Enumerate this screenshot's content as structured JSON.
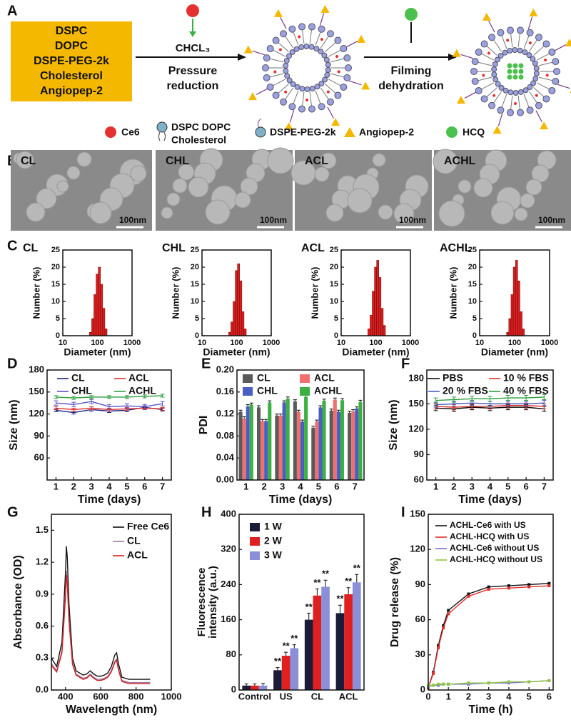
{
  "diagram": {
    "panel": "A",
    "box": [
      "DSPC",
      "DOPC",
      "DSPE-PEG-2k",
      "Cholesterol",
      "Angiopep-2"
    ],
    "step1": {
      "reagent": "CHCL₃",
      "label": [
        "Pressure",
        "reduction"
      ]
    },
    "step2": {
      "label": [
        "Filming",
        "dehydration"
      ]
    },
    "legend": {
      "ce6": "Ce6",
      "lipids": [
        "DSPC DOPC",
        "Cholesterol"
      ],
      "peg": "DSPE-PEG-2k",
      "angiopep": "Angiopep-2",
      "hcq": "HCQ"
    }
  },
  "tem": {
    "panel": "B",
    "images": [
      {
        "label": "CL",
        "scale": "100nm"
      },
      {
        "label": "CHL",
        "scale": "100nm"
      },
      {
        "label": "ACL",
        "scale": "100nm"
      },
      {
        "label": "ACHL",
        "scale": "100nm"
      }
    ]
  },
  "chart_data": [
    {
      "type": "histogram",
      "panel": "C",
      "title": "CL",
      "xlabel": "Diameter (nm)",
      "ylabel": "Number (%)",
      "log_x": true,
      "color": "#d42020",
      "bins": [
        58.8,
        68.1,
        78.8,
        91.3,
        105.7,
        122.4,
        141.8,
        164.2,
        190.1
      ],
      "counts": [
        1,
        5,
        12,
        18,
        20,
        15,
        8,
        2
      ],
      "xlim": [
        10,
        1000
      ],
      "xticks": [
        10,
        100,
        1000
      ],
      "ylim": [
        0,
        25
      ],
      "yticks": [
        0,
        5,
        10,
        15,
        20,
        25
      ]
    },
    {
      "type": "histogram",
      "title": "CHL",
      "xlabel": "Diameter (nm)",
      "ylabel": "Number (%)",
      "log_x": true,
      "color": "#d42020",
      "bins": [
        58.8,
        68.1,
        78.8,
        91.3,
        105.7,
        122.4,
        141.8,
        164.2,
        190.1
      ],
      "counts": [
        1,
        4,
        10,
        19,
        21,
        16,
        7,
        2
      ],
      "xlim": [
        10,
        1000
      ],
      "xticks": [
        10,
        100,
        1000
      ],
      "ylim": [
        0,
        25
      ],
      "yticks": [
        0,
        5,
        10,
        15,
        20,
        25
      ]
    },
    {
      "type": "histogram",
      "title": "ACL",
      "xlabel": "Diameter (nm)",
      "ylabel": "Number (%)",
      "log_x": true,
      "color": "#d42020",
      "bins": [
        58.8,
        68.1,
        78.8,
        91.3,
        105.7,
        122.4,
        141.8,
        164.2,
        190.1
      ],
      "counts": [
        2,
        6,
        13,
        20,
        22,
        17,
        8,
        3
      ],
      "xlim": [
        10,
        1000
      ],
      "xticks": [
        10,
        100,
        1000
      ],
      "ylim": [
        0,
        25
      ],
      "yticks": [
        0,
        5,
        10,
        15,
        20,
        25
      ]
    },
    {
      "type": "histogram",
      "title": "ACHL",
      "xlabel": "Diameter (nm)",
      "ylabel": "Number (%)",
      "log_x": true,
      "color": "#d42020",
      "bins": [
        58.8,
        68.1,
        78.8,
        91.3,
        105.7,
        122.4,
        141.8,
        164.2,
        190.1
      ],
      "counts": [
        1,
        5,
        12,
        20,
        22,
        16,
        7,
        2
      ],
      "xlim": [
        10,
        1000
      ],
      "xticks": [
        10,
        100,
        1000
      ],
      "ylim": [
        0,
        25
      ],
      "yticks": [
        0,
        5,
        10,
        15,
        20,
        25
      ]
    },
    {
      "type": "line",
      "panel": "D",
      "xlabel": "Time (days)",
      "ylabel": "Size (nm)",
      "x": [
        1,
        2,
        3,
        4,
        5,
        6,
        7
      ],
      "xlim": [
        0.5,
        7.5
      ],
      "xticks": [
        1,
        2,
        3,
        4,
        5,
        6,
        7
      ],
      "ylim": [
        30,
        180
      ],
      "yticks": [
        60,
        90,
        120,
        150,
        180
      ],
      "series": [
        {
          "name": "CL",
          "color": "#1a237e",
          "values": [
            125,
            122,
            126,
            124,
            125,
            129,
            126
          ],
          "errors": [
            2,
            2,
            2,
            2,
            2,
            2,
            2
          ]
        },
        {
          "name": "ACL",
          "color": "#e0302a",
          "values": [
            128,
            126,
            128,
            126,
            127,
            128,
            127
          ],
          "errors": [
            2,
            2,
            2,
            2,
            2,
            2,
            2
          ]
        },
        {
          "name": "CHL",
          "color": "#5a55c8",
          "values": [
            135,
            133,
            137,
            130,
            131,
            130,
            134
          ],
          "errors": [
            3,
            3,
            3,
            3,
            3,
            3,
            3
          ]
        },
        {
          "name": "ACHL",
          "color": "#2e9e3e",
          "values": [
            143,
            142,
            143,
            143,
            143,
            144,
            145
          ],
          "errors": [
            2,
            2,
            2,
            2,
            2,
            2,
            2
          ]
        }
      ]
    },
    {
      "type": "bar",
      "panel": "E",
      "xlabel": "Time (days)",
      "ylabel": "PDI",
      "categories": [
        "1",
        "2",
        "3",
        "4",
        "5",
        "6",
        "7"
      ],
      "ylim": [
        0,
        0.2
      ],
      "yticks": [
        {
          "value": 0,
          "label": "0.00"
        },
        {
          "value": 0.04,
          "label": "0.04"
        },
        {
          "value": 0.08,
          "label": "0.08"
        },
        {
          "value": 0.12,
          "label": "0.12"
        },
        {
          "value": 0.16,
          "label": "0.16"
        },
        {
          "value": 0.2,
          "label": "0.20"
        }
      ],
      "series": [
        {
          "name": "CL",
          "color": "#5a5a5a",
          "values": [
            0.124,
            0.132,
            0.117,
            0.143,
            0.095,
            0.126,
            0.122
          ],
          "errors": [
            0.003,
            0.003,
            0.003,
            0.003,
            0.003,
            0.003,
            0.003
          ]
        },
        {
          "name": "ACL",
          "color": "#f07070",
          "values": [
            0.112,
            0.107,
            0.117,
            0.124,
            0.106,
            0.146,
            0.125
          ],
          "errors": [
            0.003,
            0.003,
            0.003,
            0.003,
            0.003,
            0.003,
            0.003
          ]
        },
        {
          "name": "CHL",
          "color": "#4a5fc1",
          "values": [
            0.134,
            0.107,
            0.141,
            0.106,
            0.132,
            0.124,
            0.13
          ],
          "errors": [
            0.003,
            0.003,
            0.003,
            0.003,
            0.003,
            0.003,
            0.003
          ]
        },
        {
          "name": "ACHL",
          "color": "#3cb043",
          "values": [
            0.137,
            0.141,
            0.148,
            0.151,
            0.144,
            0.145,
            0.142
          ],
          "errors": [
            0.003,
            0.003,
            0.003,
            0.003,
            0.003,
            0.003,
            0.003
          ]
        }
      ]
    },
    {
      "type": "line",
      "panel": "F",
      "xlabel": "Time (days)",
      "ylabel": "Size (nm)",
      "x": [
        1,
        2,
        3,
        4,
        5,
        6,
        7
      ],
      "xlim": [
        0.5,
        7.5
      ],
      "xticks": [
        1,
        2,
        3,
        4,
        5,
        6,
        7
      ],
      "ylim": [
        60,
        190
      ],
      "yticks": [
        60,
        90,
        120,
        150,
        180
      ],
      "series": [
        {
          "name": "PBS",
          "color": "#111111",
          "values": [
            145,
            144,
            146,
            145,
            146,
            146,
            144
          ],
          "errors": [
            3,
            3,
            3,
            3,
            3,
            3,
            3
          ]
        },
        {
          "name": "10 % FBS",
          "color": "#e0302a",
          "values": [
            147,
            146,
            147,
            147,
            148,
            148,
            147
          ],
          "errors": [
            3,
            3,
            3,
            3,
            3,
            3,
            3
          ]
        },
        {
          "name": "20 % FBS",
          "color": "#4a5fc1",
          "values": [
            149,
            150,
            151,
            150,
            150,
            150,
            151
          ],
          "errors": [
            3,
            3,
            3,
            3,
            3,
            3,
            3
          ]
        },
        {
          "name": "40 % FBS",
          "color": "#2e9e3e",
          "values": [
            154,
            155,
            156,
            156,
            157,
            157,
            158
          ],
          "errors": [
            3,
            3,
            3,
            3,
            3,
            3,
            3
          ]
        }
      ]
    },
    {
      "type": "line",
      "panel": "G",
      "xlabel": "Wavelength (nm)",
      "ylabel": "Absorbance (OD)",
      "x": [
        320,
        350,
        380,
        400,
        405,
        410,
        420,
        440,
        460,
        500,
        520,
        540,
        560,
        580,
        600,
        620,
        640,
        660,
        680,
        690,
        700,
        720,
        760,
        800,
        880
      ],
      "xlim": [
        320,
        1000
      ],
      "xticks": [
        400,
        600,
        800,
        1000
      ],
      "ylim": [
        0,
        1.65
      ],
      "yticks": [
        {
          "value": 0,
          "label": "0.0"
        },
        0.3,
        0.6,
        0.9,
        1.2,
        1.5
      ],
      "series": [
        {
          "name": "Free Ce6",
          "color": "#111111",
          "values": [
            0.3,
            0.22,
            0.45,
            1.1,
            1.35,
            1.25,
            0.8,
            0.3,
            0.18,
            0.14,
            0.15,
            0.18,
            0.15,
            0.13,
            0.13,
            0.14,
            0.16,
            0.22,
            0.33,
            0.35,
            0.25,
            0.12,
            0.1,
            0.1,
            0.1
          ]
        },
        {
          "name": "CL",
          "color": "#9a7aa0",
          "values": [
            0.25,
            0.18,
            0.37,
            0.9,
            1.12,
            1.03,
            0.66,
            0.25,
            0.15,
            0.11,
            0.12,
            0.15,
            0.12,
            0.1,
            0.1,
            0.11,
            0.13,
            0.18,
            0.27,
            0.29,
            0.2,
            0.09,
            0.07,
            0.07,
            0.07
          ]
        },
        {
          "name": "ACL",
          "color": "#d42020",
          "values": [
            0.23,
            0.17,
            0.35,
            0.87,
            1.08,
            1.0,
            0.64,
            0.24,
            0.14,
            0.1,
            0.11,
            0.14,
            0.11,
            0.09,
            0.09,
            0.1,
            0.12,
            0.17,
            0.26,
            0.28,
            0.19,
            0.08,
            0.06,
            0.06,
            0.06
          ]
        }
      ]
    },
    {
      "type": "bar",
      "panel": "H",
      "ylabel": [
        "Fluorescence",
        "intensity (a.u.)"
      ],
      "categories": [
        "Control",
        "US",
        "CL",
        "ACL"
      ],
      "ylim": [
        0,
        400
      ],
      "yticks": [
        0,
        80,
        160,
        240,
        320,
        400
      ],
      "series": [
        {
          "name": "1 W",
          "color": "#1b1b3a",
          "values": [
            10,
            45,
            160,
            175
          ],
          "errors": [
            4,
            6,
            15,
            18
          ],
          "significance": [
            null,
            "**",
            "**",
            "**"
          ]
        },
        {
          "name": "2 W",
          "color": "#e02020",
          "values": [
            10,
            78,
            215,
            218
          ],
          "errors": [
            4,
            8,
            15,
            15
          ],
          "significance": [
            null,
            "**",
            "**",
            "**"
          ]
        },
        {
          "name": "3 W",
          "color": "#8a8fd8",
          "values": [
            10,
            95,
            235,
            245
          ],
          "errors": [
            5,
            8,
            15,
            18
          ],
          "significance": [
            null,
            "**",
            "**",
            "**"
          ]
        }
      ]
    },
    {
      "type": "line",
      "panel": "I",
      "xlabel": "Time (h)",
      "ylabel": "Drug release (%)",
      "markers": true,
      "x": [
        0,
        0.25,
        0.5,
        0.75,
        1,
        2,
        3,
        4,
        5,
        6
      ],
      "xlim": [
        0,
        6.2
      ],
      "xticks": [
        0,
        1,
        2,
        3,
        4,
        5,
        6
      ],
      "ylim": [
        0,
        150
      ],
      "yticks": [
        0,
        30,
        60,
        90,
        120,
        150
      ],
      "series": [
        {
          "name": "ACHL-Ce6 with US",
          "color": "#111111",
          "values": [
            2,
            15,
            38,
            55,
            68,
            82,
            88,
            89,
            90,
            91
          ]
        },
        {
          "name": "ACHL-HCQ with US",
          "color": "#e0302a",
          "values": [
            2,
            14,
            36,
            53,
            65,
            80,
            86,
            87,
            88,
            89
          ]
        },
        {
          "name": "ACHL-Ce6 without US",
          "color": "#7a6ad0",
          "values": [
            3,
            4,
            4,
            5,
            5,
            5,
            6,
            6,
            7,
            8
          ]
        },
        {
          "name": "ACHL-HCQ without US",
          "color": "#8cc63f",
          "values": [
            4,
            4,
            5,
            5,
            5,
            6,
            6,
            7,
            7,
            8
          ]
        }
      ]
    }
  ]
}
